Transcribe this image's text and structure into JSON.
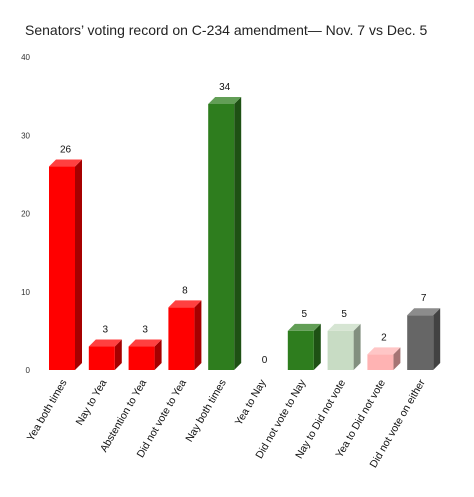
{
  "chart_data": {
    "type": "bar",
    "title": "Senators’ voting record on C-234 amendment— Nov. 7 vs Dec. 5",
    "xlabel": "",
    "ylabel": "",
    "ylim": [
      0,
      40
    ],
    "yticks": [
      0,
      10,
      20,
      30,
      40
    ],
    "grid": false,
    "legend": "none",
    "style": "3d-bar",
    "categories": [
      "Yea both times",
      "Nay to Yea",
      "Abstention to Yea",
      "Did not vote to Yea",
      "Nay both times",
      "Yea to Nay",
      "Did not vote to Nay",
      "Nay to Did not vote",
      "Yea to Did not vote",
      "Did not vote on either"
    ],
    "values": [
      26,
      3,
      3,
      8,
      34,
      0,
      5,
      5,
      2,
      7
    ],
    "colors": [
      "#ff0000",
      "#ff0000",
      "#ff0000",
      "#ff0000",
      "#2e7d1e",
      "#2e7d1e",
      "#2e7d1e",
      "#c8dcc4",
      "#ffb3b3",
      "#666666"
    ]
  }
}
